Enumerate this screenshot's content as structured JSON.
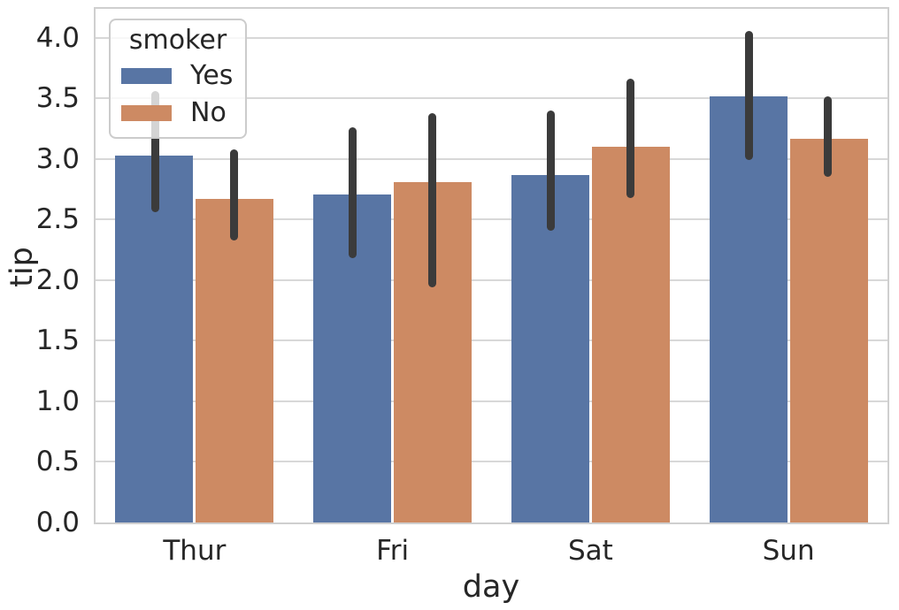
{
  "chart_data": {
    "type": "bar",
    "title": "",
    "xlabel": "day",
    "ylabel": "tip",
    "categories": [
      "Thur",
      "Fri",
      "Sat",
      "Sun"
    ],
    "series": [
      {
        "name": "Yes",
        "color": "#5875A4",
        "values": [
          3.03,
          2.71,
          2.87,
          3.52
        ],
        "ci_low": [
          2.56,
          2.18,
          2.41,
          2.99
        ],
        "ci_high": [
          3.56,
          3.26,
          3.4,
          4.06
        ]
      },
      {
        "name": "No",
        "color": "#CD8A63",
        "values": [
          2.67,
          2.81,
          3.1,
          3.17
        ],
        "ci_low": [
          2.33,
          1.94,
          2.68,
          2.85
        ],
        "ci_high": [
          3.08,
          3.38,
          3.66,
          3.52
        ]
      }
    ],
    "legend": {
      "title": "smoker",
      "entries": [
        "Yes",
        "No"
      ],
      "position": "upper left"
    },
    "ylim": [
      0,
      4.24
    ],
    "ytick_labels": [
      "0.0",
      "0.5",
      "1.0",
      "1.5",
      "2.0",
      "2.5",
      "3.0",
      "3.5",
      "4.0"
    ],
    "grid": true,
    "error_bars": "95% CI",
    "colors": {
      "error_bar": "#3B3B3B",
      "grid": "#D8D8D8",
      "spine": "#CFCFCF",
      "text": "#262626",
      "background": "#FFFFFF"
    }
  }
}
